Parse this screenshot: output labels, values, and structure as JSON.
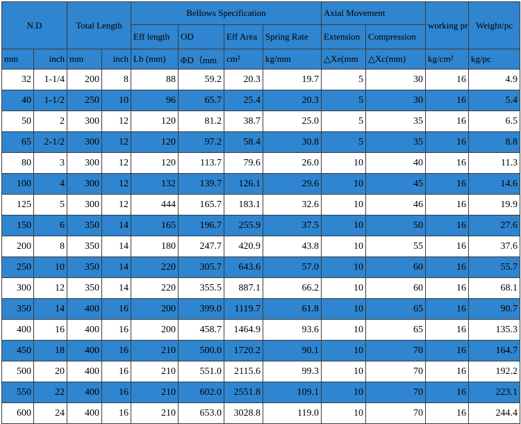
{
  "header": {
    "nd": "N.D",
    "total_length": "Total Length",
    "bellows_spec": "Bellows Specification",
    "axial_movement": "Axial Movement",
    "working_pressure": "working pressure",
    "weight": "Weight/pc",
    "eff_length": "Eff length",
    "od": "OD",
    "eff_area": "Eff Area",
    "spring_rate": "Spring Rate",
    "extension": "Extension",
    "compression": "Compression",
    "units": {
      "mm": "mm",
      "inch": "inch",
      "len_mm": "mm",
      "len_inch": "inch",
      "lb": "Lb (mm)",
      "od": "ΦD（mm",
      "area": "cm²",
      "spring": "kg/mm",
      "xe": "△Xe(mm",
      "xc": "△Xc(mm)",
      "pressure": "kg/cm²",
      "weight": "kg/pc"
    }
  },
  "rows": [
    [
      "32",
      "1-1/4",
      "200",
      "8",
      "88",
      "59.2",
      "20.3",
      "19.7",
      "5",
      "30",
      "16",
      "4.9"
    ],
    [
      "40",
      "1-1/2",
      "250",
      "10",
      "96",
      "65.7",
      "25.4",
      "20.3",
      "5",
      "30",
      "16",
      "5.4"
    ],
    [
      "50",
      "2",
      "300",
      "12",
      "120",
      "81.2",
      "38.7",
      "25.0",
      "5",
      "35",
      "16",
      "6.5"
    ],
    [
      "65",
      "2-1/2",
      "300",
      "12",
      "120",
      "97.2",
      "58.4",
      "30.8",
      "5",
      "35",
      "16",
      "8.8"
    ],
    [
      "80",
      "3",
      "300",
      "12",
      "120",
      "113.7",
      "79.6",
      "26.0",
      "10",
      "40",
      "16",
      "11.3"
    ],
    [
      "100",
      "4",
      "300",
      "12",
      "132",
      "139.7",
      "126.1",
      "29.6",
      "10",
      "45",
      "16",
      "14.6"
    ],
    [
      "125",
      "5",
      "300",
      "12",
      "444",
      "165.7",
      "183.1",
      "32.6",
      "10",
      "46",
      "16",
      "19.9"
    ],
    [
      "150",
      "6",
      "350",
      "14",
      "165",
      "196.7",
      "255.9",
      "37.5",
      "10",
      "50",
      "16",
      "27.6"
    ],
    [
      "200",
      "8",
      "350",
      "14",
      "180",
      "247.7",
      "420.9",
      "43.8",
      "10",
      "55",
      "16",
      "37.6"
    ],
    [
      "250",
      "10",
      "350",
      "14",
      "220",
      "305.7",
      "643.6",
      "57.0",
      "10",
      "60",
      "16",
      "55.7"
    ],
    [
      "300",
      "12",
      "350",
      "14",
      "220",
      "355.5",
      "887.1",
      "66.2",
      "10",
      "60",
      "16",
      "68.1"
    ],
    [
      "350",
      "14",
      "400",
      "16",
      "200",
      "399.0",
      "1119.7",
      "61.8",
      "10",
      "65",
      "16",
      "90.7"
    ],
    [
      "400",
      "16",
      "400",
      "16",
      "200",
      "458.7",
      "1464.9",
      "93.6",
      "10",
      "65",
      "16",
      "135.3"
    ],
    [
      "450",
      "18",
      "400",
      "16",
      "210",
      "500.0",
      "1720.2",
      "90.1",
      "10",
      "70",
      "16",
      "164.7"
    ],
    [
      "500",
      "20",
      "400",
      "16",
      "210",
      "551.0",
      "2115.6",
      "99.3",
      "10",
      "70",
      "16",
      "192.2"
    ],
    [
      "550",
      "22",
      "400",
      "16",
      "210",
      "602.0",
      "2551.8",
      "109.1",
      "10",
      "70",
      "16",
      "223.1"
    ],
    [
      "600",
      "24",
      "400",
      "16",
      "210",
      "653.0",
      "3028.8",
      "119.0",
      "10",
      "70",
      "16",
      "244.4"
    ]
  ],
  "colors": {
    "accent_row": "#2f85cf",
    "header": "#2f85cf",
    "plain_row": "#ffffff"
  }
}
